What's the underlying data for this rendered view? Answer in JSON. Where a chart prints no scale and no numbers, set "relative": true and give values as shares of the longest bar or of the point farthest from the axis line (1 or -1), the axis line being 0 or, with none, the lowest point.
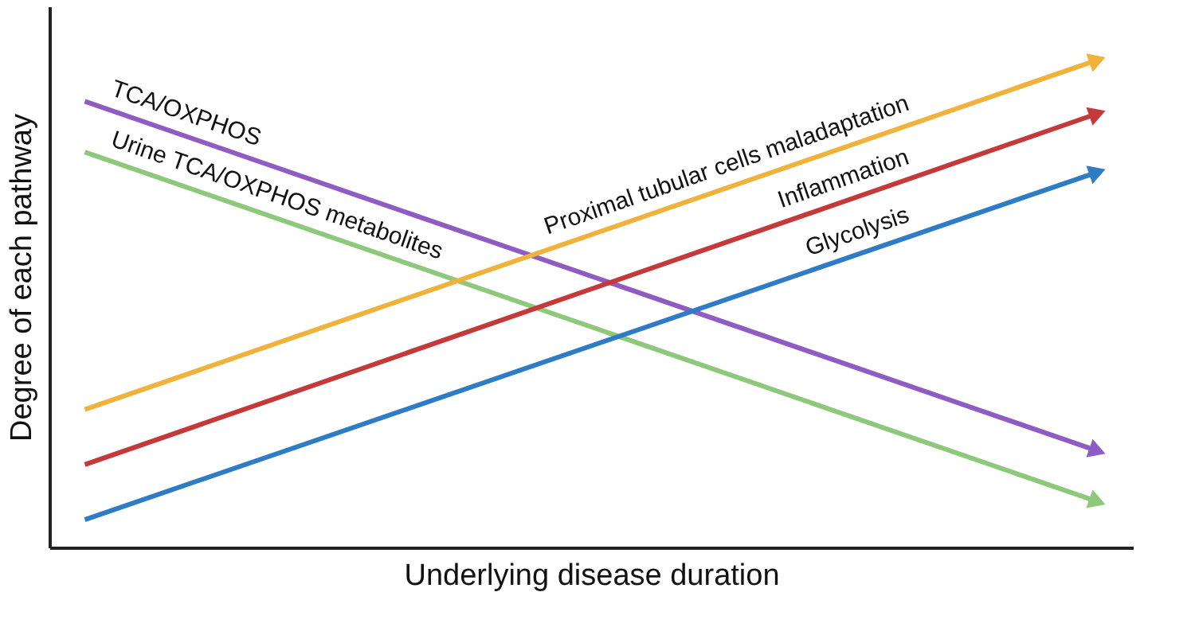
{
  "chart_data": {
    "type": "line",
    "relative": true,
    "xlabel": "Underlying disease duration",
    "ylabel": "Degree of each pathway",
    "categories": [
      null,
      null
    ],
    "legend": false,
    "grid": false,
    "line_style": "solid",
    "series": [
      {
        "name": "TCA/OXPHOS",
        "color": "#8f5cc4",
        "values": [
          0.915,
          0.198
        ]
      },
      {
        "name": "Urine TCA/OXPHOS metabolites",
        "color": "#8ec87a",
        "values": [
          0.811,
          0.094
        ]
      },
      {
        "name": "Proximal tubular cells maladaptation",
        "color": "#f0b23a",
        "values": [
          0.283,
          1
        ]
      },
      {
        "name": "Inflammation",
        "color": "#c43a3a",
        "values": [
          0.17,
          0.89
        ]
      },
      {
        "name": "Glycolysis",
        "color": "#2f7cc6",
        "values": [
          0.057,
          0.77
        ]
      }
    ]
  }
}
